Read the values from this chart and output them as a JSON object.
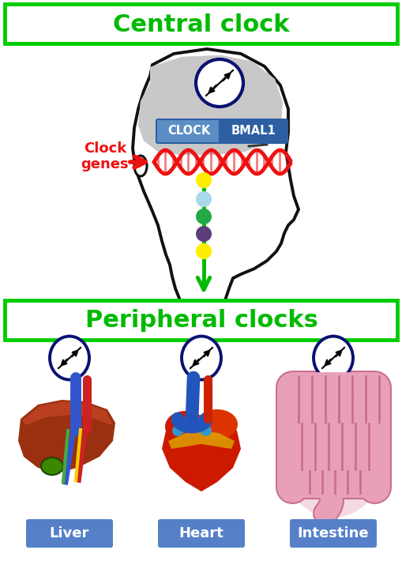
{
  "central_clock_text": "Central clock",
  "peripheral_clocks_text": "Peripheral clocks",
  "clock_label": "CLOCK",
  "bmal1_label": "BMAL1",
  "clock_genes_label": "Clock\ngenes",
  "organ_labels": [
    "Liver",
    "Heart",
    "Intestine"
  ],
  "green_color": "#00bb00",
  "box_border_color": "#00cc00",
  "gene_blue_light": "#5b8ec4",
  "gene_blue_dark": "#2e5fa3",
  "dot_colors": [
    "#ffee00",
    "#a8d8ea",
    "#22aa44",
    "#5c3d7a",
    "#ffee00"
  ],
  "red_color": "#ee1111",
  "dark_navy": "#0a1172",
  "label_bg": "#5580c8",
  "label_text": "#ffffff",
  "background": "#ffffff",
  "head_fill": "#c8c8c8",
  "head_stroke": "#111111",
  "liver_main": "#8B2500",
  "liver_dark": "#6B1800",
  "liver_green": "#3a7a00",
  "heart_red": "#cc1a00",
  "heart_dark": "#991100",
  "heart_yellow": "#ddaa00",
  "heart_blue": "#2255bb",
  "intestine_pink": "#e8a0b8",
  "intestine_border": "#c87090"
}
